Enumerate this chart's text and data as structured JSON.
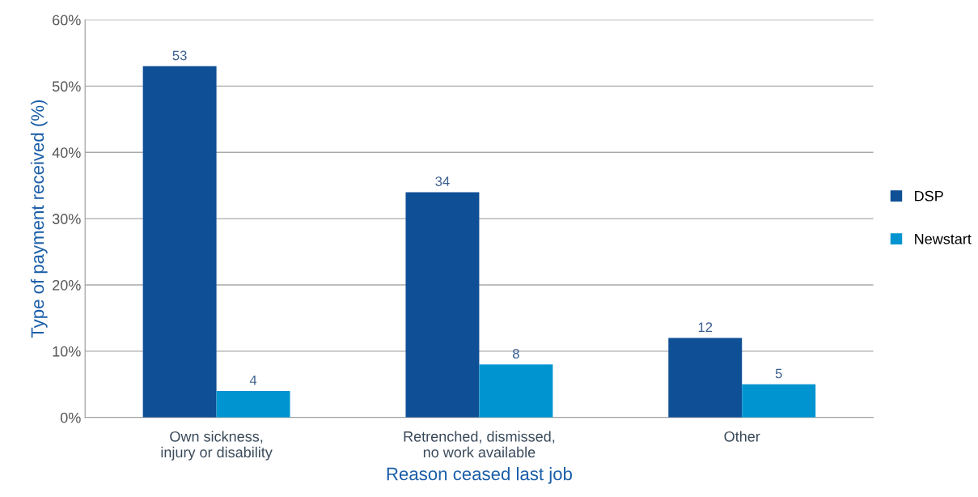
{
  "chart_data": {
    "type": "bar",
    "categories": [
      "Own sickness,\ninjury or disability",
      "Retrenched, dismissed,\nno work available",
      "Other"
    ],
    "series": [
      {
        "name": "DSP",
        "color": "#0f4f96",
        "values": [
          53,
          34,
          12
        ]
      },
      {
        "name": "Newstart",
        "color": "#0095d0",
        "values": [
          4,
          8,
          5
        ]
      }
    ],
    "xlabel": "Reason ceased last job",
    "ylabel": "Type of payment received (%)",
    "ylim": [
      0,
      60
    ],
    "yticks": [
      {
        "value": 0,
        "label": "0%"
      },
      {
        "value": 10,
        "label": "10%"
      },
      {
        "value": 20,
        "label": "20%"
      },
      {
        "value": 30,
        "label": "30%"
      },
      {
        "value": 40,
        "label": "40%"
      },
      {
        "value": 50,
        "label": "50%"
      },
      {
        "value": 60,
        "label": "60%"
      }
    ],
    "grid": "y",
    "legend": "right",
    "data_labels": true
  }
}
